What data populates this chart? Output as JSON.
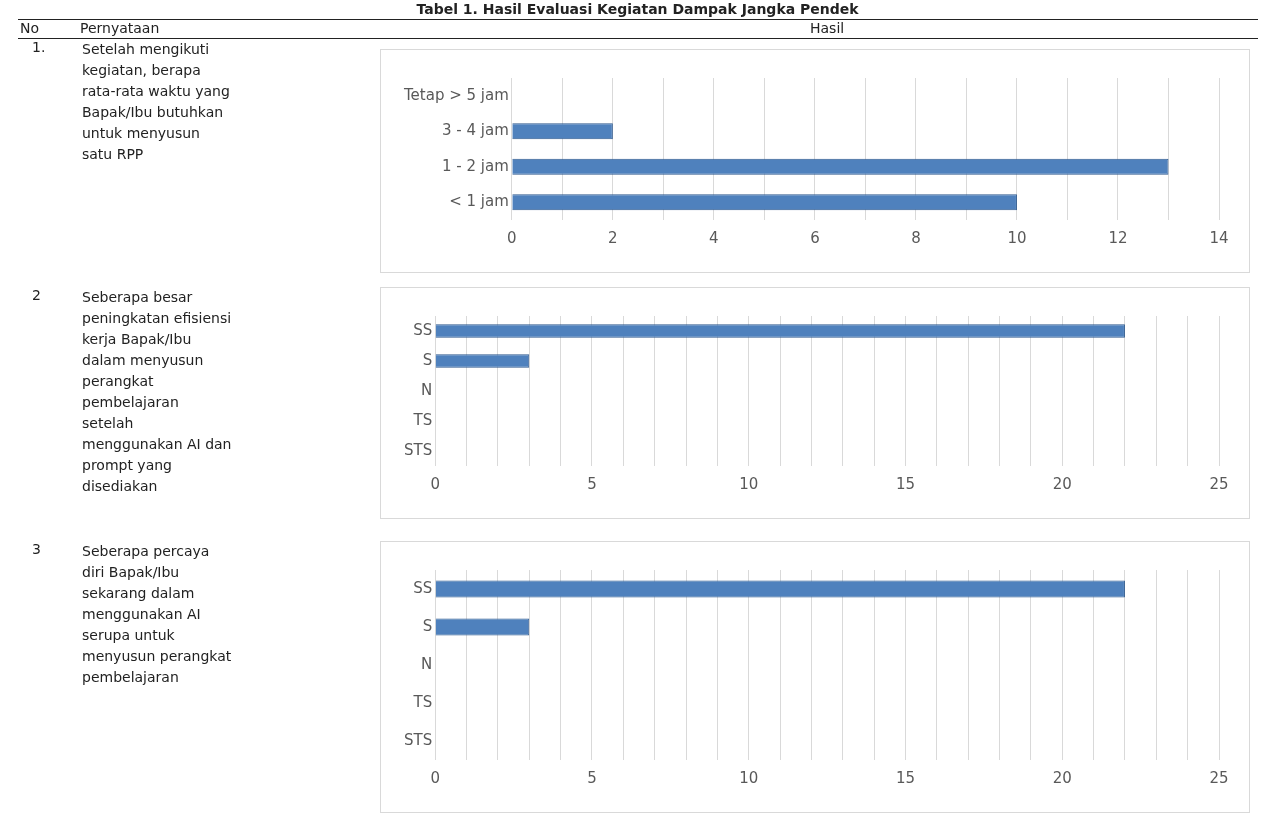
{
  "chart_data": [
    {
      "type": "bar",
      "orientation": "horizontal",
      "annotations": [
        "Tabel 1. Hasil Evaluasi Kegiatan Dampak Jangka Pendek",
        "No",
        "Pernyataan",
        "Hasil",
        "1.",
        "Setelah mengikuti kegiatan, berapa rata-rata waktu yang Bapak/Ibu butuhkan untuk menyusun satu RPP"
      ],
      "categories": [
        "Tetap > 5 jam",
        "3 - 4 jam",
        "1 - 2 jam",
        "< 1 jam"
      ],
      "values": [
        0,
        2,
        13,
        10
      ],
      "color": "#4f81bd",
      "xlim": [
        0,
        14
      ],
      "xticks": [
        0,
        {
          "value": 1,
          "label": null
        },
        2,
        {
          "value": 3,
          "label": null
        },
        4,
        {
          "value": 5,
          "label": null
        },
        6,
        {
          "value": 7,
          "label": null
        },
        8,
        {
          "value": 9,
          "label": null
        },
        10,
        {
          "value": 11,
          "label": null
        },
        12,
        {
          "value": 13,
          "label": null
        },
        14
      ],
      "grid": "x",
      "legend": false
    },
    {
      "type": "bar",
      "orientation": "horizontal",
      "annotations": [
        "2",
        "Seberapa besar peningkatan efisiensi kerja Bapak/Ibu dalam menyusun perangkat pembelajaran setelah menggunakan AI dan prompt yang disediakan"
      ],
      "categories": [
        "SS",
        "S",
        "N",
        "TS",
        "STS"
      ],
      "values": [
        22,
        3,
        0,
        0,
        0
      ],
      "color": "#4f81bd",
      "xlim": [
        0,
        25
      ],
      "xticks": [
        0,
        {
          "value": 1,
          "label": null
        },
        {
          "value": 2,
          "label": null
        },
        {
          "value": 3,
          "label": null
        },
        {
          "value": 4,
          "label": null
        },
        5,
        {
          "value": 6,
          "label": null
        },
        {
          "value": 7,
          "label": null
        },
        {
          "value": 8,
          "label": null
        },
        {
          "value": 9,
          "label": null
        },
        10,
        {
          "value": 11,
          "label": null
        },
        {
          "value": 12,
          "label": null
        },
        {
          "value": 13,
          "label": null
        },
        {
          "value": 14,
          "label": null
        },
        15,
        {
          "value": 16,
          "label": null
        },
        {
          "value": 17,
          "label": null
        },
        {
          "value": 18,
          "label": null
        },
        {
          "value": 19,
          "label": null
        },
        20,
        {
          "value": 21,
          "label": null
        },
        {
          "value": 22,
          "label": null
        },
        {
          "value": 23,
          "label": null
        },
        {
          "value": 24,
          "label": null
        },
        25
      ],
      "grid": "x",
      "legend": false
    },
    {
      "type": "bar",
      "orientation": "horizontal",
      "annotations": [
        "3",
        "Seberapa percaya diri Bapak/Ibu sekarang dalam menggunakan AI serupa untuk menyusun perangkat pembelajaran"
      ],
      "categories": [
        "SS",
        "S",
        "N",
        "TS",
        "STS"
      ],
      "values": [
        22,
        3,
        0,
        0,
        0
      ],
      "color": "#4f81bd",
      "xlim": [
        0,
        25
      ],
      "xticks": [
        0,
        {
          "value": 1,
          "label": null
        },
        {
          "value": 2,
          "label": null
        },
        {
          "value": 3,
          "label": null
        },
        {
          "value": 4,
          "label": null
        },
        5,
        {
          "value": 6,
          "label": null
        },
        {
          "value": 7,
          "label": null
        },
        {
          "value": 8,
          "label": null
        },
        {
          "value": 9,
          "label": null
        },
        10,
        {
          "value": 11,
          "label": null
        },
        {
          "value": 12,
          "label": null
        },
        {
          "value": 13,
          "label": null
        },
        {
          "value": 14,
          "label": null
        },
        15,
        {
          "value": 16,
          "label": null
        },
        {
          "value": 17,
          "label": null
        },
        {
          "value": 18,
          "label": null
        },
        {
          "value": 19,
          "label": null
        },
        20,
        {
          "value": 21,
          "label": null
        },
        {
          "value": 22,
          "label": null
        },
        {
          "value": 23,
          "label": null
        },
        {
          "value": 24,
          "label": null
        },
        25
      ],
      "grid": "x",
      "legend": false
    }
  ]
}
